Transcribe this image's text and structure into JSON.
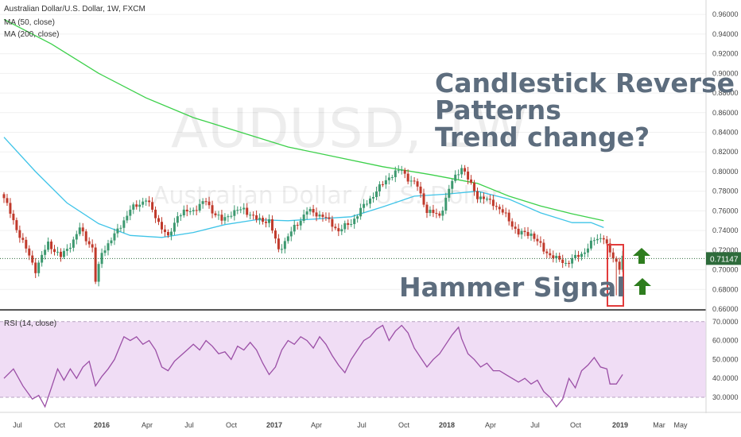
{
  "legend": {
    "title": "Australian Dollar/U.S. Dollar, 1W, FXCM",
    "ma50": "MA (50, close)",
    "ma200": "MA (200, close)",
    "rsi": "RSI (14, close)"
  },
  "watermark": {
    "symbol": "AUDUSD, 1W",
    "name": "Australian Dollar / U.S. Dollar"
  },
  "annotations": {
    "headline_1": "Candlestick Reverse",
    "headline_2": "Patterns",
    "headline_3": "Trend change?",
    "signal": "Hammer Signal"
  },
  "colors": {
    "bull": "#3d9970",
    "bear": "#c0392b",
    "ma50": "#3fc4e8",
    "ma200": "#3cd04a",
    "rsi": "#9b4fa6",
    "rsi_band": "#f0ddf5",
    "price_tag": "#2e6b3b",
    "arrow": "#2e7d1e",
    "highlight": "#e23b3b"
  },
  "chart_data": [
    {
      "type": "candlestick",
      "ylim": [
        0.66,
        0.965
      ],
      "y_ticks": [
        "0.96000",
        "0.94000",
        "0.92000",
        "0.90000",
        "0.88000",
        "0.86000",
        "0.84000",
        "0.82000",
        "0.80000",
        "0.78000",
        "0.76000",
        "0.74000",
        "0.72000",
        "0.70000",
        "0.68000",
        "0.66000"
      ],
      "y_tick_values": [
        0.96,
        0.94,
        0.92,
        0.9,
        0.88,
        0.86,
        0.84,
        0.82,
        0.8,
        0.78,
        0.76,
        0.74,
        0.72,
        0.7,
        0.68,
        0.66
      ],
      "x_ticks": [
        "Jul",
        "Oct",
        "2016",
        "Apr",
        "Jul",
        "Oct",
        "2017",
        "Apr",
        "Jul",
        "Oct",
        "2018",
        "Apr",
        "Jul",
        "Oct",
        "2019",
        "Mar",
        "May"
      ],
      "last_price": "0.71147",
      "last_value": 0.71147,
      "close_anchors": [
        [
          0,
          0.773
        ],
        [
          4,
          0.742
        ],
        [
          10,
          0.7
        ],
        [
          14,
          0.727
        ],
        [
          18,
          0.713
        ],
        [
          22,
          0.73
        ],
        [
          24,
          0.742
        ],
        [
          28,
          0.722
        ],
        [
          29,
          0.688
        ],
        [
          31,
          0.718
        ],
        [
          35,
          0.735
        ],
        [
          40,
          0.761
        ],
        [
          45,
          0.772
        ],
        [
          47,
          0.76
        ],
        [
          52,
          0.732
        ],
        [
          55,
          0.756
        ],
        [
          60,
          0.761
        ],
        [
          64,
          0.77
        ],
        [
          66,
          0.76
        ],
        [
          69,
          0.75
        ],
        [
          72,
          0.758
        ],
        [
          76,
          0.762
        ],
        [
          80,
          0.751
        ],
        [
          84,
          0.75
        ],
        [
          87,
          0.72
        ],
        [
          92,
          0.743
        ],
        [
          96,
          0.76
        ],
        [
          101,
          0.755
        ],
        [
          106,
          0.74
        ],
        [
          110,
          0.748
        ],
        [
          114,
          0.765
        ],
        [
          118,
          0.78
        ],
        [
          122,
          0.795
        ],
        [
          126,
          0.802
        ],
        [
          128,
          0.793
        ],
        [
          131,
          0.785
        ],
        [
          134,
          0.76
        ],
        [
          138,
          0.755
        ],
        [
          142,
          0.79
        ],
        [
          145,
          0.805
        ],
        [
          147,
          0.792
        ],
        [
          150,
          0.775
        ],
        [
          155,
          0.768
        ],
        [
          159,
          0.755
        ],
        [
          163,
          0.737
        ],
        [
          167,
          0.737
        ],
        [
          171,
          0.72
        ],
        [
          175,
          0.711
        ],
        [
          178,
          0.707
        ],
        [
          183,
          0.716
        ],
        [
          187,
          0.73
        ],
        [
          190,
          0.734
        ],
        [
          192,
          0.716
        ],
        [
          195,
          0.703
        ],
        [
          196,
          0.715
        ]
      ],
      "ma50": [
        [
          0,
          0.835
        ],
        [
          10,
          0.8
        ],
        [
          20,
          0.768
        ],
        [
          30,
          0.747
        ],
        [
          40,
          0.735
        ],
        [
          50,
          0.733
        ],
        [
          60,
          0.738
        ],
        [
          70,
          0.746
        ],
        [
          80,
          0.751
        ],
        [
          90,
          0.75
        ],
        [
          100,
          0.752
        ],
        [
          110,
          0.754
        ],
        [
          120,
          0.764
        ],
        [
          130,
          0.775
        ],
        [
          140,
          0.777
        ],
        [
          150,
          0.78
        ],
        [
          160,
          0.772
        ],
        [
          170,
          0.758
        ],
        [
          180,
          0.748
        ],
        [
          186,
          0.748
        ],
        [
          190,
          0.743
        ]
      ],
      "ma200": [
        [
          0,
          0.955
        ],
        [
          15,
          0.93
        ],
        [
          30,
          0.9
        ],
        [
          45,
          0.875
        ],
        [
          60,
          0.855
        ],
        [
          75,
          0.84
        ],
        [
          90,
          0.825
        ],
        [
          105,
          0.815
        ],
        [
          120,
          0.805
        ],
        [
          135,
          0.797
        ],
        [
          150,
          0.788
        ],
        [
          160,
          0.775
        ],
        [
          170,
          0.765
        ],
        [
          180,
          0.757
        ],
        [
          190,
          0.75
        ]
      ]
    },
    {
      "type": "line",
      "name": "RSI (14, close)",
      "ylim": [
        22,
        72
      ],
      "y_ticks": [
        "70.0000",
        "60.0000",
        "50.0000",
        "40.0000",
        "30.0000"
      ],
      "y_tick_values": [
        70,
        60,
        50,
        40,
        30
      ],
      "band": [
        30,
        70
      ],
      "values": [
        [
          0,
          40
        ],
        [
          3,
          45
        ],
        [
          6,
          36
        ],
        [
          9,
          29
        ],
        [
          11,
          31
        ],
        [
          13,
          25
        ],
        [
          15,
          35
        ],
        [
          17,
          45
        ],
        [
          19,
          39
        ],
        [
          21,
          45
        ],
        [
          23,
          40
        ],
        [
          25,
          46
        ],
        [
          27,
          49
        ],
        [
          29,
          36
        ],
        [
          31,
          41
        ],
        [
          33,
          45
        ],
        [
          35,
          50
        ],
        [
          37,
          58
        ],
        [
          38,
          62
        ],
        [
          40,
          60
        ],
        [
          42,
          62
        ],
        [
          44,
          58
        ],
        [
          46,
          60
        ],
        [
          48,
          55
        ],
        [
          50,
          46
        ],
        [
          52,
          44
        ],
        [
          54,
          49
        ],
        [
          56,
          52
        ],
        [
          58,
          55
        ],
        [
          60,
          58
        ],
        [
          62,
          55
        ],
        [
          64,
          60
        ],
        [
          66,
          57
        ],
        [
          68,
          53
        ],
        [
          70,
          54
        ],
        [
          72,
          50
        ],
        [
          74,
          57
        ],
        [
          76,
          55
        ],
        [
          78,
          59
        ],
        [
          80,
          55
        ],
        [
          82,
          48
        ],
        [
          84,
          42
        ],
        [
          86,
          46
        ],
        [
          88,
          55
        ],
        [
          90,
          60
        ],
        [
          92,
          58
        ],
        [
          94,
          62
        ],
        [
          96,
          60
        ],
        [
          98,
          56
        ],
        [
          100,
          62
        ],
        [
          102,
          58
        ],
        [
          104,
          52
        ],
        [
          106,
          47
        ],
        [
          108,
          43
        ],
        [
          110,
          50
        ],
        [
          112,
          55
        ],
        [
          114,
          60
        ],
        [
          116,
          62
        ],
        [
          118,
          66
        ],
        [
          120,
          68
        ],
        [
          122,
          60
        ],
        [
          124,
          65
        ],
        [
          126,
          68
        ],
        [
          128,
          64
        ],
        [
          130,
          56
        ],
        [
          132,
          51
        ],
        [
          134,
          46
        ],
        [
          136,
          50
        ],
        [
          138,
          53
        ],
        [
          140,
          58
        ],
        [
          142,
          63
        ],
        [
          144,
          67
        ],
        [
          145,
          61
        ],
        [
          147,
          53
        ],
        [
          149,
          50
        ],
        [
          151,
          46
        ],
        [
          153,
          48
        ],
        [
          155,
          44
        ],
        [
          157,
          44
        ],
        [
          159,
          42
        ],
        [
          161,
          40
        ],
        [
          163,
          38
        ],
        [
          165,
          40
        ],
        [
          167,
          37
        ],
        [
          169,
          39
        ],
        [
          171,
          33
        ],
        [
          173,
          30
        ],
        [
          175,
          25
        ],
        [
          177,
          29
        ],
        [
          179,
          40
        ],
        [
          181,
          35
        ],
        [
          183,
          44
        ],
        [
          185,
          47
        ],
        [
          187,
          51
        ],
        [
          189,
          46
        ],
        [
          191,
          45
        ],
        [
          192,
          37
        ],
        [
          194,
          37
        ],
        [
          196,
          42
        ]
      ]
    }
  ]
}
